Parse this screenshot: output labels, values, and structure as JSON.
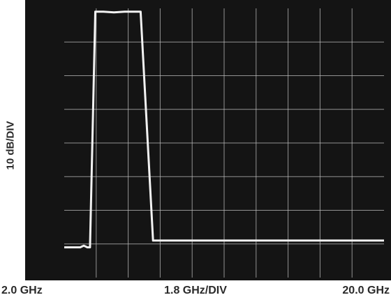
{
  "chart_data": {
    "type": "line",
    "title": "",
    "ylabel": "10 dB/DIV",
    "xlabel": "1.8 GHz/DIV",
    "x_start_label": "2.0 GHz",
    "x_end_label": "20.0 GHz",
    "xlim": [
      2.0,
      20.0
    ],
    "ylim": [
      -80,
      0
    ],
    "grid": true,
    "legend": "none",
    "colors": {
      "screen": "#141414",
      "trace": "#f2f2f2",
      "grid": "#bdbdbd",
      "text": "#2a2a2a"
    },
    "series": [
      {
        "x": [
          2.0,
          2.3,
          2.6,
          2.9,
          3.1,
          3.3,
          3.45,
          3.75,
          4.2,
          4.8,
          5.4,
          5.9,
          6.3,
          7.0,
          8.0,
          9.5,
          11.0,
          12.5,
          14.0,
          15.5,
          17.0,
          18.5,
          20.0
        ],
        "y": [
          -71,
          -71,
          -71,
          -71,
          -70.5,
          -71,
          -71,
          -1,
          -1,
          -1.2,
          -1,
          -1,
          -1,
          -69,
          -69,
          -69,
          -69,
          -69,
          -69,
          -69,
          -69,
          -69,
          -69
        ]
      }
    ]
  }
}
